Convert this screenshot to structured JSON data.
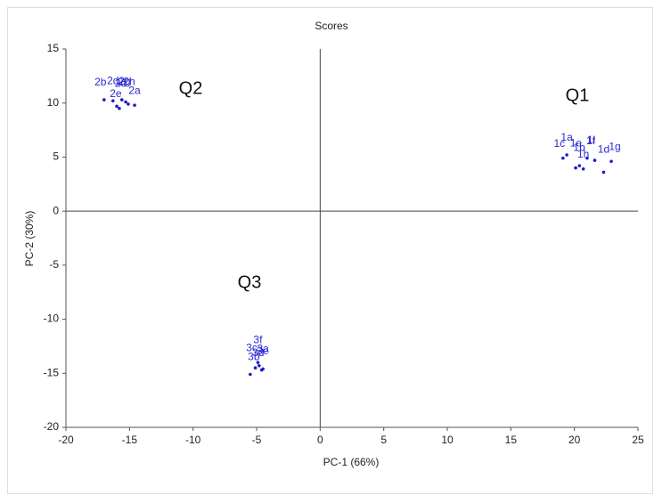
{
  "chart_data": {
    "type": "scatter",
    "title": "Scores",
    "x_label": "PC-1 (66%)",
    "y_label": "PC-2 (30%)",
    "xlim": [
      -20,
      25
    ],
    "xticks": [
      -20,
      -15,
      -10,
      -5,
      0,
      5,
      10,
      15,
      20,
      25
    ],
    "ylim": [
      -20,
      15
    ],
    "yticks": [
      -20,
      -15,
      -10,
      -5,
      0,
      5,
      10,
      15
    ],
    "series": [
      {
        "color": "#1c1cc8",
        "x": [
          19.1,
          19.4,
          20.1,
          20.4,
          20.7,
          21.0,
          21.6,
          22.3,
          22.9,
          -17.0,
          -16.3,
          -16.0,
          -15.8,
          -15.6,
          -15.3,
          -15.1,
          -14.6,
          -5.5,
          -5.1,
          -4.9,
          -4.8,
          -4.6,
          -4.5
        ],
        "values": [
          4.9,
          5.2,
          4.0,
          4.2,
          3.9,
          4.9,
          4.7,
          3.6,
          4.6,
          10.3,
          10.2,
          9.7,
          9.5,
          10.3,
          10.1,
          9.9,
          9.8,
          -15.1,
          -14.5,
          -14.0,
          -14.3,
          -14.7,
          -14.6
        ],
        "point_labels": [
          "1c",
          "1a",
          "1b",
          "1e",
          "1h",
          "1f",
          "1i",
          "1d",
          "1g",
          "2b",
          "2d",
          "2c",
          "2e",
          "2f",
          "2h",
          "2g",
          "2a",
          "3b",
          "3c",
          "3f",
          "3e",
          "3d",
          "3a"
        ]
      }
    ],
    "annotations": [
      "Q1",
      "Q2",
      "Q3"
    ]
  }
}
